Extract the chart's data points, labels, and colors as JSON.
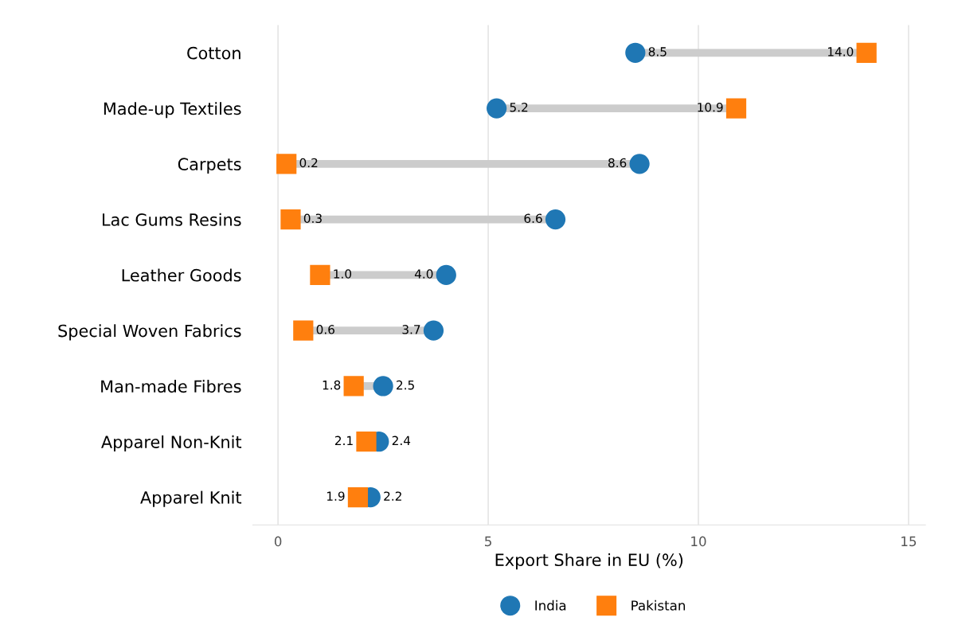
{
  "chart_data": {
    "type": "scatter",
    "orientation": "horizontal",
    "xlabel": "Export Share in EU (%)",
    "categories": [
      "Cotton",
      "Made-up Textiles",
      "Carpets",
      "Lac Gums Resins",
      "Leather Goods",
      "Special Woven Fabrics",
      "Man-made Fibres",
      "Apparel Non-Knit",
      "Apparel Knit"
    ],
    "series": [
      {
        "name": "India",
        "color": "#1f77b4",
        "marker": "circle",
        "values": [
          8.5,
          5.2,
          8.6,
          6.6,
          4.0,
          3.7,
          2.5,
          2.4,
          2.2
        ],
        "value_labels": [
          "8.5",
          "5.2",
          "8.6",
          "6.6",
          "4.0",
          "3.7",
          "2.5",
          "2.4",
          "2.2"
        ]
      },
      {
        "name": "Pakistan",
        "color": "#ff7f0e",
        "marker": "square",
        "values": [
          14.0,
          10.9,
          0.2,
          0.3,
          1.0,
          0.6,
          1.8,
          2.1,
          1.9
        ],
        "value_labels": [
          "14.0",
          "10.9",
          "0.2",
          "0.3",
          "1.0",
          "0.6",
          "1.8",
          "2.1",
          "1.9"
        ]
      }
    ],
    "xlim": [
      -0.6,
      15.4
    ],
    "xticks": [
      0,
      5,
      10,
      15
    ],
    "grid": "x",
    "legend": "bottom"
  }
}
